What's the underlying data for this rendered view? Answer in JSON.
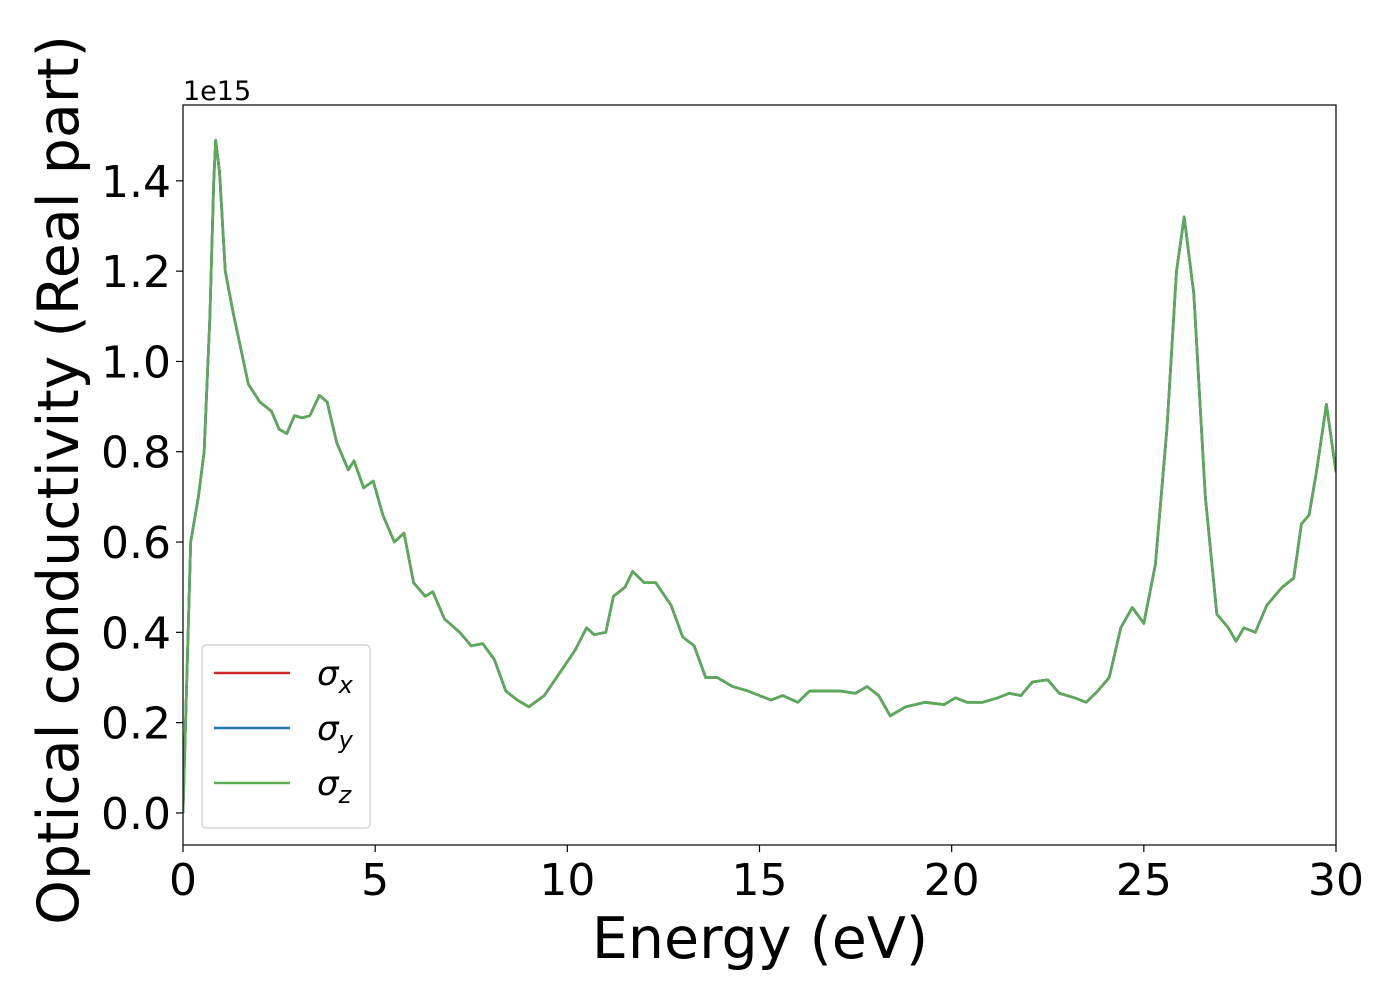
{
  "chart_data": {
    "type": "line",
    "xlabel": "Energy (eV)",
    "ylabel": "Optical conductivity (Real part)",
    "offset_label": "1e15",
    "xlim": [
      0,
      30
    ],
    "xticks": [
      0,
      5,
      10,
      15,
      20,
      25,
      30
    ],
    "ylim": [
      -0.071,
      1.568
    ],
    "yticks": [
      {
        "value": 0,
        "label": "0.0"
      },
      0.2,
      0.4,
      0.6,
      0.8,
      {
        "value": 1,
        "label": "1.0"
      },
      1.2,
      1.4
    ],
    "legend": "lower left",
    "x": [
      0,
      0.1,
      0.2,
      0.4,
      0.55,
      0.7,
      0.8,
      0.85,
      0.95,
      1.1,
      1.3,
      1.5,
      1.7,
      2.0,
      2.3,
      2.5,
      2.7,
      2.9,
      3.1,
      3.3,
      3.55,
      3.75,
      4.0,
      4.3,
      4.45,
      4.7,
      4.95,
      5.2,
      5.5,
      5.75,
      6.0,
      6.3,
      6.5,
      6.8,
      7.2,
      7.5,
      7.8,
      8.1,
      8.4,
      8.7,
      9.0,
      9.4,
      9.8,
      10.2,
      10.5,
      10.7,
      11.0,
      11.2,
      11.5,
      11.7,
      12.0,
      12.3,
      12.7,
      13.0,
      13.3,
      13.6,
      13.9,
      14.3,
      14.7,
      15.0,
      15.3,
      15.6,
      16.0,
      16.3,
      16.7,
      17.1,
      17.5,
      17.8,
      18.1,
      18.4,
      18.8,
      19.3,
      19.8,
      20.1,
      20.4,
      20.8,
      21.2,
      21.5,
      21.8,
      22.1,
      22.5,
      22.8,
      23.2,
      23.5,
      23.8,
      24.1,
      24.4,
      24.7,
      25.0,
      25.3,
      25.6,
      25.85,
      26.05,
      26.3,
      26.6,
      26.9,
      27.2,
      27.4,
      27.6,
      27.9,
      28.2,
      28.6,
      28.9,
      29.1,
      29.3,
      29.5,
      29.75,
      30.0
    ],
    "series": [
      {
        "name": "σx",
        "color": "#d62728",
        "values": [
          0.0,
          0.3,
          0.6,
          0.7,
          0.8,
          1.1,
          1.4,
          1.49,
          1.42,
          1.2,
          1.11,
          1.03,
          0.95,
          0.91,
          0.89,
          0.85,
          0.84,
          0.88,
          0.875,
          0.88,
          0.925,
          0.91,
          0.82,
          0.76,
          0.78,
          0.72,
          0.735,
          0.66,
          0.6,
          0.62,
          0.51,
          0.48,
          0.49,
          0.43,
          0.4,
          0.37,
          0.375,
          0.34,
          0.27,
          0.25,
          0.235,
          0.26,
          0.31,
          0.36,
          0.41,
          0.395,
          0.4,
          0.48,
          0.5,
          0.535,
          0.51,
          0.51,
          0.46,
          0.39,
          0.37,
          0.3,
          0.3,
          0.28,
          0.27,
          0.26,
          0.25,
          0.26,
          0.245,
          0.27,
          0.27,
          0.27,
          0.265,
          0.28,
          0.26,
          0.215,
          0.235,
          0.245,
          0.24,
          0.255,
          0.245,
          0.245,
          0.255,
          0.265,
          0.26,
          0.29,
          0.295,
          0.265,
          0.255,
          0.245,
          0.27,
          0.3,
          0.41,
          0.455,
          0.42,
          0.55,
          0.85,
          1.2,
          1.32,
          1.15,
          0.7,
          0.44,
          0.41,
          0.38,
          0.41,
          0.4,
          0.46,
          0.5,
          0.52,
          0.64,
          0.66,
          0.76,
          0.905,
          0.755
        ]
      },
      {
        "name": "σy",
        "color": "#1f77b4",
        "values": [
          0.0,
          0.3,
          0.6,
          0.7,
          0.8,
          1.1,
          1.4,
          1.49,
          1.42,
          1.2,
          1.11,
          1.03,
          0.95,
          0.91,
          0.89,
          0.85,
          0.84,
          0.88,
          0.875,
          0.88,
          0.925,
          0.91,
          0.82,
          0.76,
          0.78,
          0.72,
          0.735,
          0.66,
          0.6,
          0.62,
          0.51,
          0.48,
          0.49,
          0.43,
          0.4,
          0.37,
          0.375,
          0.34,
          0.27,
          0.25,
          0.235,
          0.26,
          0.31,
          0.36,
          0.41,
          0.395,
          0.4,
          0.48,
          0.5,
          0.535,
          0.51,
          0.51,
          0.46,
          0.39,
          0.37,
          0.3,
          0.3,
          0.28,
          0.27,
          0.26,
          0.25,
          0.26,
          0.245,
          0.27,
          0.27,
          0.27,
          0.265,
          0.28,
          0.26,
          0.215,
          0.235,
          0.245,
          0.24,
          0.255,
          0.245,
          0.245,
          0.255,
          0.265,
          0.26,
          0.29,
          0.295,
          0.265,
          0.255,
          0.245,
          0.27,
          0.3,
          0.41,
          0.455,
          0.42,
          0.55,
          0.85,
          1.2,
          1.32,
          1.15,
          0.7,
          0.44,
          0.41,
          0.38,
          0.41,
          0.4,
          0.46,
          0.5,
          0.52,
          0.64,
          0.66,
          0.76,
          0.905,
          0.755
        ]
      },
      {
        "name": "σz",
        "color": "#5aab56",
        "values": [
          0.0,
          0.3,
          0.6,
          0.7,
          0.8,
          1.1,
          1.4,
          1.49,
          1.42,
          1.2,
          1.11,
          1.03,
          0.95,
          0.91,
          0.89,
          0.85,
          0.84,
          0.88,
          0.875,
          0.88,
          0.925,
          0.91,
          0.82,
          0.76,
          0.78,
          0.72,
          0.735,
          0.66,
          0.6,
          0.62,
          0.51,
          0.48,
          0.49,
          0.43,
          0.4,
          0.37,
          0.375,
          0.34,
          0.27,
          0.25,
          0.235,
          0.26,
          0.31,
          0.36,
          0.41,
          0.395,
          0.4,
          0.48,
          0.5,
          0.535,
          0.51,
          0.51,
          0.46,
          0.39,
          0.37,
          0.3,
          0.3,
          0.28,
          0.27,
          0.26,
          0.25,
          0.26,
          0.245,
          0.27,
          0.27,
          0.27,
          0.265,
          0.28,
          0.26,
          0.215,
          0.235,
          0.245,
          0.24,
          0.255,
          0.245,
          0.245,
          0.255,
          0.265,
          0.26,
          0.29,
          0.295,
          0.265,
          0.255,
          0.245,
          0.27,
          0.3,
          0.41,
          0.455,
          0.42,
          0.55,
          0.85,
          1.2,
          1.32,
          1.15,
          0.7,
          0.44,
          0.41,
          0.38,
          0.41,
          0.4,
          0.46,
          0.5,
          0.52,
          0.64,
          0.66,
          0.76,
          0.905,
          0.755
        ]
      }
    ]
  }
}
